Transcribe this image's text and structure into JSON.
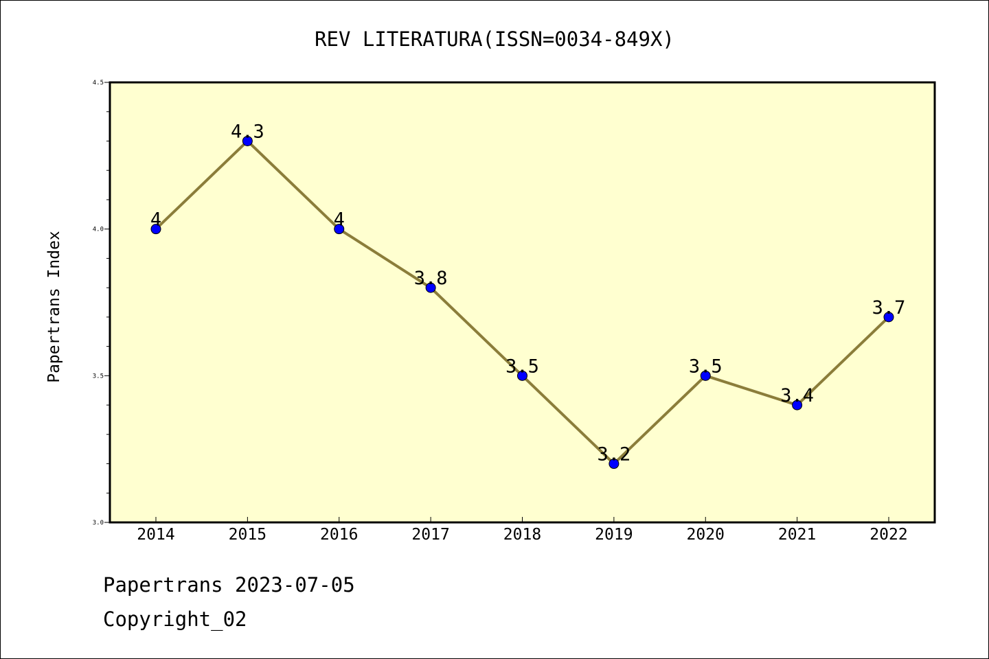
{
  "chart_data": {
    "type": "line",
    "title": "REV LITERATURA(ISSN=0034-849X)",
    "xlabel": "",
    "ylabel": "Papertrans Index",
    "categories": [
      "2014",
      "2015",
      "2016",
      "2017",
      "2018",
      "2019",
      "2020",
      "2021",
      "2022"
    ],
    "series": [
      {
        "values": [
          4.0,
          4.3,
          4.0,
          3.8,
          3.5,
          3.2,
          3.5,
          3.4,
          3.7
        ],
        "labels": [
          "4",
          "4.3",
          "4",
          "3.8",
          "3.5",
          "3.2",
          "3.5",
          "3.4",
          "3.7"
        ]
      }
    ],
    "ylim": [
      3.0,
      4.5
    ],
    "yticks": [
      "3.0",
      "3.5",
      "4.0",
      "4.5"
    ],
    "grid": false,
    "colors": {
      "plot_background": "#ffffd0",
      "line": "#8b7d3a",
      "marker": "#0000ff"
    }
  },
  "footer": {
    "line1": "Papertrans 2023-07-05",
    "line2": "Copyright_02"
  }
}
